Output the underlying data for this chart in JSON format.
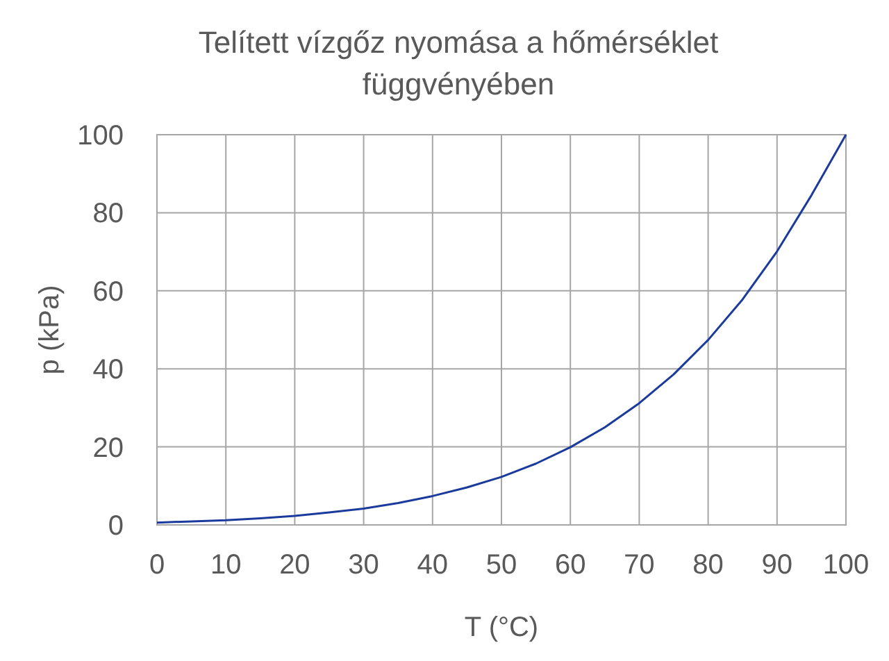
{
  "chart_data": {
    "type": "line",
    "title": "Telített vízgőz nyomása a hőmérséklet\nfüggvényében",
    "xlabel": "T (°C)",
    "ylabel": "p (kPa)",
    "x": [
      0,
      5,
      10,
      15,
      20,
      25,
      30,
      35,
      40,
      45,
      50,
      55,
      60,
      65,
      70,
      75,
      80,
      85,
      90,
      95,
      100
    ],
    "series": [
      {
        "color": "#1a3a9c",
        "values": [
          0.6,
          0.9,
          1.2,
          1.7,
          2.3,
          3.2,
          4.2,
          5.6,
          7.4,
          9.6,
          12.3,
          15.7,
          19.9,
          25.0,
          31.2,
          38.6,
          47.4,
          57.8,
          70.1,
          84.5,
          100
        ]
      }
    ],
    "xlim": [
      0,
      100
    ],
    "xticks": [
      0,
      10,
      20,
      30,
      40,
      50,
      60,
      70,
      80,
      90,
      100
    ],
    "ylim": [
      0,
      100
    ],
    "yticks": [
      0,
      20,
      40,
      60,
      80,
      100
    ],
    "grid": true,
    "marker": "none",
    "line_style": "solid"
  }
}
